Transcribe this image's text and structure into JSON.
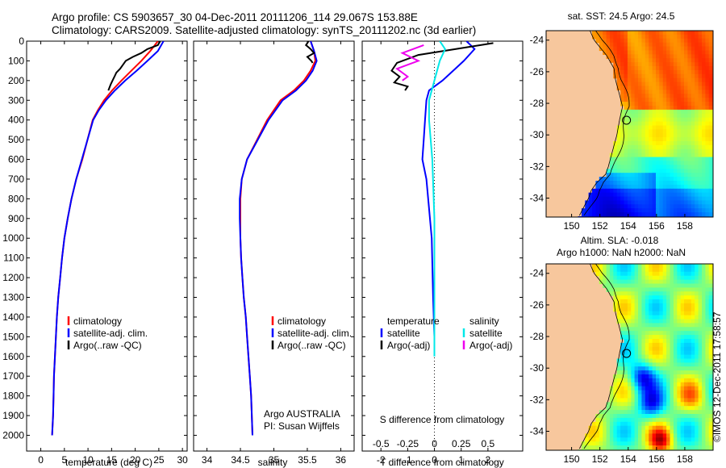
{
  "header": {
    "line1": "Argo profile: CS 5903657_30 04-Dec-2011 20111206_114 29.067S 153.88E",
    "line2": "Climatology: CARS2009. Satellite-adjusted climatology: synTS_20111202.nc (3d earlier)"
  },
  "watermark": "©IMOS 12-Dec-2011 17:58:57",
  "colors": {
    "climatology": "#ff0000",
    "satellite": "#0000ff",
    "argo": "#000000",
    "sal_satellite": "#00e8e8",
    "sal_argo": "#ee00ee",
    "land": "#f7c79d"
  },
  "chart_data": [
    {
      "type": "line",
      "id": "temperature",
      "xlabel": "temperature (deg C)",
      "ylabel": "",
      "xlim": [
        -3,
        31
      ],
      "ylim": [
        2080,
        0
      ],
      "y_reversed": true,
      "xticks": [
        0,
        5,
        10,
        15,
        20,
        25,
        30
      ],
      "yticks": [
        0,
        100,
        200,
        300,
        400,
        500,
        600,
        700,
        800,
        900,
        1000,
        1100,
        1200,
        1300,
        1400,
        1500,
        1600,
        1700,
        1800,
        1900,
        2000
      ],
      "legend": [
        "climatology",
        "satellite-adj. clim.",
        "Argo(..raw -QC)"
      ],
      "legend_position": "lower-middle",
      "series": [
        {
          "name": "climatology",
          "color": "#ff0000",
          "x": [
            24.8,
            23.2,
            21.3,
            19.2,
            17.1,
            15.1,
            13.4,
            12.1,
            11.0,
            9.9,
            8.8,
            7.5,
            6.5,
            5.7,
            5.0,
            4.5,
            4.1,
            3.7,
            3.4,
            3.2,
            3.0,
            2.8,
            2.7,
            2.6,
            2.5,
            2.4
          ],
          "y": [
            0,
            50,
            100,
            150,
            200,
            250,
            300,
            350,
            400,
            500,
            600,
            700,
            800,
            900,
            1000,
            1100,
            1200,
            1300,
            1400,
            1500,
            1600,
            1700,
            1800,
            1900,
            1950,
            2000
          ]
        },
        {
          "name": "satellite-adj. clim.",
          "color": "#0000ff",
          "x": [
            26.0,
            24.8,
            22.6,
            20.3,
            17.9,
            15.7,
            13.8,
            12.3,
            11.1,
            9.9,
            8.7,
            7.5,
            6.5,
            5.7,
            5.0,
            4.5,
            4.1,
            3.7,
            3.4,
            3.2,
            3.0,
            2.8,
            2.7,
            2.6,
            2.5,
            2.4
          ],
          "y": [
            0,
            50,
            100,
            150,
            200,
            250,
            300,
            350,
            400,
            500,
            600,
            700,
            800,
            900,
            1000,
            1100,
            1200,
            1300,
            1400,
            1500,
            1600,
            1700,
            1800,
            1900,
            1950,
            2000
          ]
        },
        {
          "name": "Argo(..raw -QC)",
          "color": "#000000",
          "x": [
            25.3,
            24.8,
            22.6,
            21.3,
            19.5,
            18.0,
            17.4,
            16.8,
            16.0,
            15.6,
            15.2,
            14.8,
            14.3
          ],
          "y": [
            0,
            20,
            40,
            60,
            80,
            100,
            120,
            140,
            160,
            180,
            200,
            220,
            250
          ]
        }
      ]
    },
    {
      "type": "line",
      "id": "salinity",
      "xlabel": "salinity",
      "ylabel": "",
      "xlim": [
        33.8,
        36.2
      ],
      "ylim": [
        2080,
        0
      ],
      "y_reversed": true,
      "xticks": [
        34,
        34.5,
        35,
        35.5,
        36
      ],
      "legend": [
        "climatology",
        "satellite-adj. clim.",
        "Argo(..raw -QC)"
      ],
      "legend_position": "lower-right",
      "annotations": [
        "Argo AUSTRALIA",
        "PI: Susan Wijffels"
      ],
      "series": [
        {
          "name": "climatology",
          "color": "#ff0000",
          "x": [
            35.55,
            35.6,
            35.62,
            35.55,
            35.45,
            35.3,
            35.1,
            34.9,
            34.75,
            34.6,
            34.52,
            34.5,
            34.5,
            34.5,
            34.51,
            34.53,
            34.55,
            34.58,
            34.6,
            34.62,
            34.64,
            34.66,
            34.68
          ],
          "y": [
            0,
            50,
            100,
            150,
            200,
            250,
            300,
            400,
            500,
            600,
            700,
            800,
            900,
            1000,
            1100,
            1200,
            1300,
            1400,
            1500,
            1600,
            1700,
            1800,
            2000
          ]
        },
        {
          "name": "satellite-adj. clim.",
          "color": "#0000ff",
          "x": [
            35.55,
            35.6,
            35.64,
            35.58,
            35.48,
            35.33,
            35.13,
            34.92,
            34.76,
            34.6,
            34.52,
            34.49,
            34.49,
            34.5,
            34.51,
            34.53,
            34.55,
            34.58,
            34.6,
            34.62,
            34.64,
            34.66,
            34.68
          ],
          "y": [
            0,
            50,
            100,
            150,
            200,
            250,
            300,
            400,
            500,
            600,
            700,
            800,
            900,
            1000,
            1100,
            1200,
            1300,
            1400,
            1500,
            1600,
            1700,
            1800,
            2000
          ]
        },
        {
          "name": "Argo(..raw -QC)",
          "color": "#000000",
          "x": [
            35.52,
            35.48,
            35.55,
            35.6,
            35.5,
            35.56,
            35.58
          ],
          "y": [
            0,
            20,
            40,
            60,
            80,
            100,
            110
          ]
        }
      ]
    },
    {
      "type": "line",
      "id": "difference",
      "xlabel": "T difference from climatology",
      "xlabel2": "S difference from climatology",
      "ylabel": "",
      "xlim": [
        -2.7,
        3.3
      ],
      "xlim_salinity": [
        -0.675,
        0.825
      ],
      "ylim": [
        2080,
        0
      ],
      "y_reversed": true,
      "xticks": [
        -2,
        -1,
        0,
        1,
        2
      ],
      "xticks_salinity": [
        -0.5,
        -0.25,
        0,
        0.25,
        0.5
      ],
      "legend_headers": [
        "temperature",
        "salinity"
      ],
      "legend": [
        "satellite",
        "Argo(-adj)",
        "satellite",
        "Argo(-adj)"
      ],
      "legend_position": "lower",
      "series": [
        {
          "name": "satellite",
          "color": "#0000ff",
          "x": [
            1.2,
            1.5,
            1.1,
            0.7,
            0.3,
            -0.2,
            -0.3,
            -0.35,
            -0.4,
            -0.45,
            -0.3,
            -0.1,
            -0.05,
            0
          ],
          "y": [
            0,
            40,
            100,
            150,
            200,
            250,
            300,
            400,
            500,
            600,
            700,
            1000,
            1300,
            1500
          ]
        },
        {
          "name": "Argo(-adj)",
          "color": "#000000",
          "x": [
            2.2,
            0.8,
            -0.6,
            -1.4,
            -1.6,
            -1.3,
            -1.5,
            -1.0,
            -1.1
          ],
          "y": [
            10,
            40,
            70,
            110,
            150,
            180,
            210,
            230,
            250
          ]
        },
        {
          "name": "satellite",
          "color": "#00e8e8",
          "x": [
            0.05,
            0.1,
            0.05,
            0.0,
            -0.05,
            -0.05,
            -0.02,
            0.0,
            0.0,
            0.0,
            0.0
          ],
          "y": [
            0,
            40,
            100,
            200,
            300,
            400,
            600,
            900,
            1200,
            1500,
            1600
          ]
        },
        {
          "name": "Argo(-adj)",
          "color": "#ee00ee",
          "x": [
            -0.1,
            -0.3,
            -0.15,
            -0.35,
            -0.25,
            -0.3
          ],
          "y": [
            20,
            60,
            100,
            140,
            180,
            200
          ]
        }
      ]
    },
    {
      "type": "heatmap",
      "id": "sst-map",
      "title": "sat. SST: 24.5  Argo: 24.5",
      "xticks": [
        150,
        152,
        154,
        156,
        158
      ],
      "yticks": [
        -24,
        -26,
        -28,
        -30,
        -32,
        -34
      ],
      "xlim": [
        148.2,
        160
      ],
      "ylim": [
        -35.2,
        -23.4
      ],
      "argo_position": {
        "lon": 153.88,
        "lat": -29.067
      }
    },
    {
      "type": "heatmap",
      "id": "sla-map",
      "title": "Altim. SLA: -0.018",
      "subtitle": "Argo h1000: NaN h2000: NaN",
      "xticks": [
        150,
        152,
        154,
        156,
        158
      ],
      "yticks": [
        -24,
        -26,
        -28,
        -30,
        -32,
        -34
      ],
      "xlim": [
        148.2,
        160
      ],
      "ylim": [
        -35.2,
        -23.4
      ],
      "argo_position": {
        "lon": 153.88,
        "lat": -29.067
      }
    }
  ]
}
